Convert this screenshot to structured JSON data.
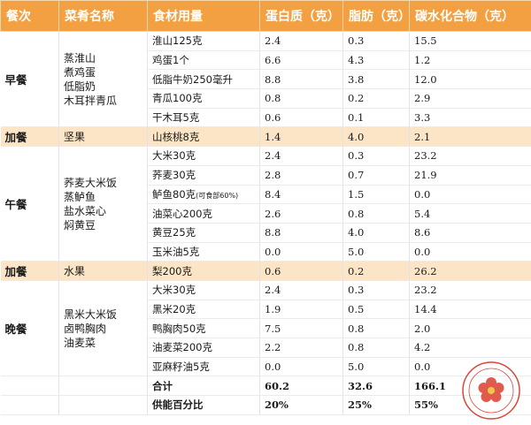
{
  "headers": [
    "餐次",
    "菜肴名称",
    "食材用量",
    "蛋白质（克）",
    "脂肪（克）",
    "碳水化合物（克）"
  ],
  "meals": [
    {
      "meal": "早餐",
      "dishes": [
        "蒸淮山",
        "煮鸡蛋",
        "低脂奶",
        "木耳拌青瓜"
      ],
      "snack": false,
      "rows": [
        {
          "ingredient": "淮山125克",
          "protein": "2.4",
          "fat": "0.3",
          "carb": "15.5"
        },
        {
          "ingredient": "鸡蛋1个",
          "protein": "6.6",
          "fat": "4.3",
          "carb": "1.2"
        },
        {
          "ingredient": "低脂牛奶250毫升",
          "protein": "8.8",
          "fat": "3.8",
          "carb": "12.0"
        },
        {
          "ingredient": "青瓜100克",
          "protein": "0.8",
          "fat": "0.2",
          "carb": "2.9"
        },
        {
          "ingredient": "干木耳5克",
          "protein": "0.6",
          "fat": "0.1",
          "carb": "3.3"
        }
      ]
    },
    {
      "meal": "加餐",
      "dishes": [
        "坚果"
      ],
      "snack": true,
      "rows": [
        {
          "ingredient": "山核桃8克",
          "protein": "1.4",
          "fat": "4.0",
          "carb": "2.1"
        }
      ]
    },
    {
      "meal": "午餐",
      "dishes": [
        "荞麦大米饭",
        "蒸鲈鱼",
        "盐水菜心",
        "焖黄豆"
      ],
      "snack": false,
      "rows": [
        {
          "ingredient": "大米30克",
          "protein": "2.4",
          "fat": "0.3",
          "carb": "23.2"
        },
        {
          "ingredient": "荞麦30克",
          "protein": "2.8",
          "fat": "0.7",
          "carb": "21.9"
        },
        {
          "ingredient": "鲈鱼80克",
          "note": "(可食部60%)",
          "protein": "8.4",
          "fat": "1.5",
          "carb": "0.0"
        },
        {
          "ingredient": "油菜心200克",
          "protein": "2.6",
          "fat": "0.8",
          "carb": "5.4"
        },
        {
          "ingredient": "黄豆25克",
          "protein": "8.8",
          "fat": "4.0",
          "carb": "8.6"
        },
        {
          "ingredient": "玉米油5克",
          "protein": "0.0",
          "fat": "5.0",
          "carb": "0.0"
        }
      ]
    },
    {
      "meal": "加餐",
      "dishes": [
        "水果"
      ],
      "snack": true,
      "rows": [
        {
          "ingredient": "梨200克",
          "protein": "0.6",
          "fat": "0.2",
          "carb": "26.2"
        }
      ]
    },
    {
      "meal": "晚餐",
      "dishes": [
        "黑米大米饭",
        "卤鸭胸肉",
        "油麦菜"
      ],
      "snack": false,
      "rows": [
        {
          "ingredient": "大米30克",
          "protein": "2.4",
          "fat": "0.3",
          "carb": "23.2"
        },
        {
          "ingredient": "黑米20克",
          "protein": "1.9",
          "fat": "0.5",
          "carb": "14.4"
        },
        {
          "ingredient": "鸭胸肉50克",
          "protein": "7.5",
          "fat": "0.8",
          "carb": "2.0"
        },
        {
          "ingredient": "油麦菜200克",
          "protein": "2.2",
          "fat": "0.8",
          "carb": "4.2"
        },
        {
          "ingredient": "亚麻籽油5克",
          "protein": "0.0",
          "fat": "5.0",
          "carb": "0.0"
        }
      ]
    }
  ],
  "totals": [
    {
      "label": "合计",
      "protein": "60.2",
      "fat": "32.6",
      "carb": "166.1"
    },
    {
      "label": "供能百分比",
      "protein": "20%",
      "fat": "25%",
      "carb": "55%"
    }
  ],
  "colors": {
    "header": "#f2a041",
    "snack_row": "#fbe5c6",
    "seal_red": "#d9453a"
  }
}
